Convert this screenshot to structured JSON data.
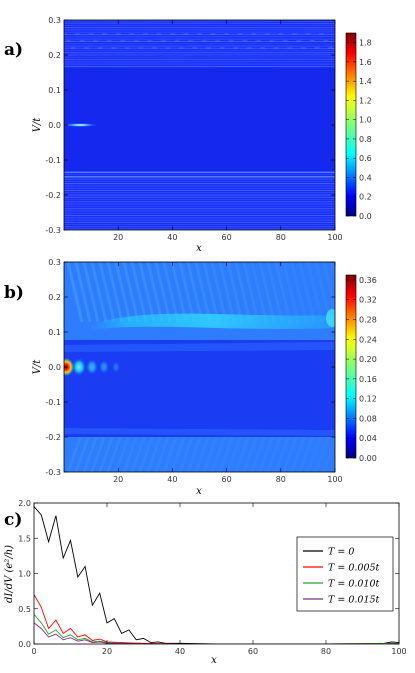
{
  "panels": {
    "a": {
      "label": "a)"
    },
    "b": {
      "label": "b)"
    },
    "c": {
      "label": "c)"
    }
  },
  "chart_data": [
    {
      "type": "heatmap",
      "panel": "a",
      "xlabel": "x",
      "ylabel": "V/t",
      "xlim": [
        0,
        100
      ],
      "ylim": [
        -0.3,
        0.3
      ],
      "xticks": [
        "20",
        "40",
        "60",
        "80",
        "100"
      ],
      "yticks": [
        "0.3",
        "0.2",
        "0.1",
        "0.0",
        "-0.1",
        "-0.2",
        "-0.3"
      ],
      "colorbar": {
        "min": 0.0,
        "max": 1.9,
        "ticks": [
          "1.8",
          "1.6",
          "1.4",
          "1.2",
          "1.0",
          "0.8",
          "0.6",
          "0.4",
          "0.2",
          "0.0"
        ],
        "colormap": "jet"
      },
      "features": {
        "gap_band_V": [
          -0.13,
          0.13
        ],
        "zero_bias_peak_x_range": [
          0,
          10
        ],
        "zero_bias_peak_max": 1.9
      }
    },
    {
      "type": "heatmap",
      "panel": "b",
      "xlabel": "x",
      "ylabel": "V/t",
      "xlim": [
        0,
        100
      ],
      "ylim": [
        -0.3,
        0.3
      ],
      "xticks": [
        "20",
        "40",
        "60",
        "80",
        "100"
      ],
      "yticks": [
        "0.3",
        "0.2",
        "0.1",
        "0.0",
        "-0.1",
        "-0.2",
        "-0.3"
      ],
      "colorbar": {
        "min": 0.0,
        "max": 0.37,
        "ticks": [
          "0.36",
          "0.32",
          "0.28",
          "0.24",
          "0.20",
          "0.16",
          "0.12",
          "0.08",
          "0.04",
          "0.00"
        ],
        "colormap": "jet"
      },
      "features": {
        "gap_band_V": [
          -0.11,
          0.11
        ],
        "zero_bias_peak_x_range": [
          0,
          12
        ],
        "zero_bias_peak_max": 0.37
      }
    },
    {
      "type": "line",
      "panel": "c",
      "xlabel": "x",
      "ylabel": "dI/dV (e²/h)",
      "xlim": [
        0,
        100
      ],
      "ylim": [
        0,
        2.0
      ],
      "xticks": [
        "0",
        "20",
        "40",
        "60",
        "80",
        "100"
      ],
      "yticks": [
        "2.0",
        "1.5",
        "1.0",
        "0.5",
        "0.0"
      ],
      "legend_position": "right",
      "series": [
        {
          "name": "T = 0",
          "color": "#000000",
          "x": [
            0,
            2,
            4,
            6,
            8,
            10,
            12,
            14,
            16,
            18,
            20,
            22,
            24,
            26,
            28,
            30,
            32,
            34,
            36,
            40,
            50,
            60,
            70,
            80,
            90,
            96,
            98,
            100
          ],
          "y": [
            1.95,
            1.83,
            1.45,
            1.82,
            1.22,
            1.47,
            0.95,
            1.1,
            0.55,
            0.72,
            0.3,
            0.36,
            0.15,
            0.2,
            0.06,
            0.08,
            0.02,
            0.03,
            0.01,
            0.01,
            0.0,
            0.0,
            0.0,
            0.0,
            0.0,
            0.01,
            0.03,
            0.02
          ]
        },
        {
          "name": "T = 0.005t",
          "color": "#ff0000",
          "x": [
            0,
            2,
            4,
            6,
            8,
            10,
            12,
            14,
            16,
            18,
            20,
            24,
            30,
            40,
            60,
            80,
            100
          ],
          "y": [
            0.7,
            0.52,
            0.22,
            0.34,
            0.15,
            0.22,
            0.1,
            0.13,
            0.05,
            0.07,
            0.03,
            0.02,
            0.01,
            0.0,
            0.0,
            0.0,
            0.01
          ]
        },
        {
          "name": "T = 0.010t",
          "color": "#2ca02c",
          "x": [
            0,
            2,
            4,
            6,
            8,
            10,
            12,
            14,
            16,
            18,
            20,
            24,
            30,
            40,
            60,
            80,
            100
          ],
          "y": [
            0.42,
            0.3,
            0.14,
            0.2,
            0.09,
            0.13,
            0.06,
            0.08,
            0.03,
            0.04,
            0.02,
            0.01,
            0.0,
            0.0,
            0.0,
            0.0,
            0.01
          ]
        },
        {
          "name": "T = 0.015t",
          "color": "#7b2d8b",
          "x": [
            0,
            2,
            4,
            6,
            8,
            10,
            12,
            14,
            16,
            18,
            20,
            24,
            30,
            40,
            60,
            80,
            100
          ],
          "y": [
            0.3,
            0.22,
            0.1,
            0.14,
            0.06,
            0.09,
            0.04,
            0.06,
            0.02,
            0.03,
            0.01,
            0.01,
            0.0,
            0.0,
            0.0,
            0.0,
            0.0
          ]
        }
      ]
    }
  ]
}
